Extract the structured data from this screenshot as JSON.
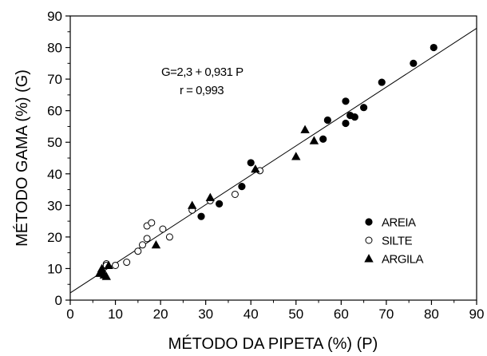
{
  "chart_data": {
    "type": "scatter",
    "title": "",
    "xlabel": "MÉTODO DA PIPETA (%) (P)",
    "ylabel": "MÉTODO GAMA (%) (G)",
    "xlim": [
      0,
      90
    ],
    "ylim": [
      0,
      90
    ],
    "xticks": [
      0,
      10,
      20,
      30,
      40,
      50,
      60,
      70,
      80,
      90
    ],
    "yticks": [
      0,
      10,
      20,
      30,
      40,
      50,
      60,
      70,
      80,
      90
    ],
    "grid": false,
    "legend_position": "bottom-right",
    "annotations": [
      "G=2,3 + 0,931 P",
      "r = 0,993"
    ],
    "fit_line": {
      "intercept": 2.3,
      "slope": 0.931
    },
    "series": [
      {
        "name": "AREIA",
        "marker": "filled-circle",
        "x": [
          29,
          33,
          38,
          40,
          56,
          57,
          61,
          61,
          62,
          63,
          65,
          69,
          76,
          80.5
        ],
        "y": [
          26.5,
          30.5,
          36,
          43.5,
          51,
          57,
          63,
          56,
          58.5,
          58,
          61,
          69,
          75,
          80
        ]
      },
      {
        "name": "SILTE",
        "marker": "open-circle",
        "x": [
          8,
          8,
          10,
          12.5,
          15,
          16,
          17,
          17,
          18,
          20.5,
          22,
          27,
          31,
          36.5,
          42
        ],
        "y": [
          11.5,
          11,
          11,
          12,
          15.5,
          17.5,
          19.5,
          23.5,
          24.5,
          22.5,
          20,
          28.5,
          31.5,
          33.5,
          41
        ]
      },
      {
        "name": "ARGILA",
        "marker": "triangle",
        "x": [
          6.5,
          7,
          7,
          7.5,
          8,
          8.5,
          19,
          27,
          31,
          41,
          50,
          52,
          54
        ],
        "y": [
          8.5,
          9.5,
          10,
          8,
          7.5,
          11,
          17.5,
          30,
          32.5,
          41.5,
          45.5,
          54,
          50.5
        ]
      }
    ]
  }
}
